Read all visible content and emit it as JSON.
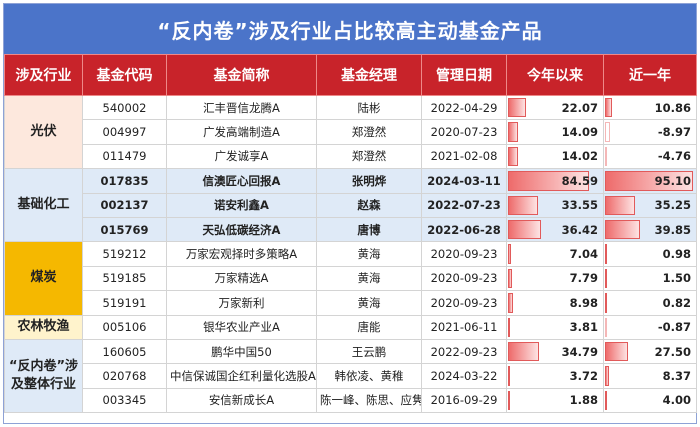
{
  "title": "“反内卷”涉及行业占比较高主动基金产品",
  "headers": [
    "涉及行业",
    "基金代码",
    "基金简称",
    "基金经理",
    "管理日期",
    "今年以来",
    "近一年"
  ],
  "colors": {
    "title_bg": "#4b74c9",
    "header_bg": "#c8232a",
    "industry_bg": [
      "#fde8dd",
      "#dfeaf7",
      "#f5b800",
      "#fff3cc",
      "#dfeaf7"
    ],
    "highlight_row": "#dfeaf7",
    "bar": "#ee6b6b"
  },
  "bar_max": 95.1,
  "groups": [
    {
      "industry": "光伏",
      "rows": [
        {
          "code": "540002",
          "name": "汇丰晋信龙腾A",
          "manager": "陆彬",
          "date": "2022-04-29",
          "ytd": "22.07",
          "yr": "10.86",
          "ytd_v": 22.07,
          "yr_v": 10.86,
          "hl": false
        },
        {
          "code": "004997",
          "name": "广发高端制造A",
          "manager": "郑澄然",
          "date": "2020-07-23",
          "ytd": "14.09",
          "yr": "-8.97",
          "ytd_v": 14.09,
          "yr_v": -8.97,
          "hl": false
        },
        {
          "code": "011479",
          "name": "广发诚享A",
          "manager": "郑澄然",
          "date": "2021-02-08",
          "ytd": "14.02",
          "yr": "-4.76",
          "ytd_v": 14.02,
          "yr_v": -4.76,
          "hl": false
        }
      ]
    },
    {
      "industry": "基础化工",
      "rows": [
        {
          "code": "017835",
          "name": "信澳匠心回报A",
          "manager": "张明烨",
          "date": "2024-03-11",
          "ytd": "84.59",
          "yr": "95.10",
          "ytd_v": 84.59,
          "yr_v": 95.1,
          "hl": true
        },
        {
          "code": "002137",
          "name": "诺安利鑫A",
          "manager": "赵森",
          "date": "2022-07-23",
          "ytd": "33.55",
          "yr": "35.25",
          "ytd_v": 33.55,
          "yr_v": 35.25,
          "hl": true
        },
        {
          "code": "015769",
          "name": "天弘低碳经济A",
          "manager": "唐博",
          "date": "2022-06-28",
          "ytd": "36.42",
          "yr": "39.85",
          "ytd_v": 36.42,
          "yr_v": 39.85,
          "hl": true
        }
      ]
    },
    {
      "industry": "煤炭",
      "rows": [
        {
          "code": "519212",
          "name": "万家宏观择时多策略A",
          "manager": "黄海",
          "date": "2020-09-23",
          "ytd": "7.04",
          "yr": "0.98",
          "ytd_v": 7.04,
          "yr_v": 0.98,
          "hl": false
        },
        {
          "code": "519185",
          "name": "万家精选A",
          "manager": "黄海",
          "date": "2020-09-23",
          "ytd": "7.79",
          "yr": "1.50",
          "ytd_v": 7.79,
          "yr_v": 1.5,
          "hl": false
        },
        {
          "code": "519191",
          "name": "万家新利",
          "manager": "黄海",
          "date": "2020-09-23",
          "ytd": "8.98",
          "yr": "0.82",
          "ytd_v": 8.98,
          "yr_v": 0.82,
          "hl": false
        }
      ]
    },
    {
      "industry": "农林牧渔",
      "rows": [
        {
          "code": "005106",
          "name": "银华农业产业A",
          "manager": "唐能",
          "date": "2021-06-11",
          "ytd": "3.81",
          "yr": "-0.87",
          "ytd_v": 3.81,
          "yr_v": -0.87,
          "hl": false
        }
      ]
    },
    {
      "industry": "“反内卷”涉及整体行业",
      "rows": [
        {
          "code": "160605",
          "name": "鹏华中国50",
          "manager": "王云鹏",
          "date": "2022-09-23",
          "ytd": "34.79",
          "yr": "27.50",
          "ytd_v": 34.79,
          "yr_v": 27.5,
          "hl": false
        },
        {
          "code": "020768",
          "name": "中信保诚国企红利量化选股A",
          "manager": "韩依凌、黄稚",
          "date": "2024-03-22",
          "ytd": "3.72",
          "yr": "8.37",
          "ytd_v": 3.72,
          "yr_v": 8.37,
          "hl": false
        },
        {
          "code": "003345",
          "name": "安信新成长A",
          "manager": "陈一峰、陈思、应隽",
          "date": "2016-09-29",
          "ytd": "1.88",
          "yr": "4.00",
          "ytd_v": 1.88,
          "yr_v": 4.0,
          "hl": false
        }
      ]
    }
  ]
}
